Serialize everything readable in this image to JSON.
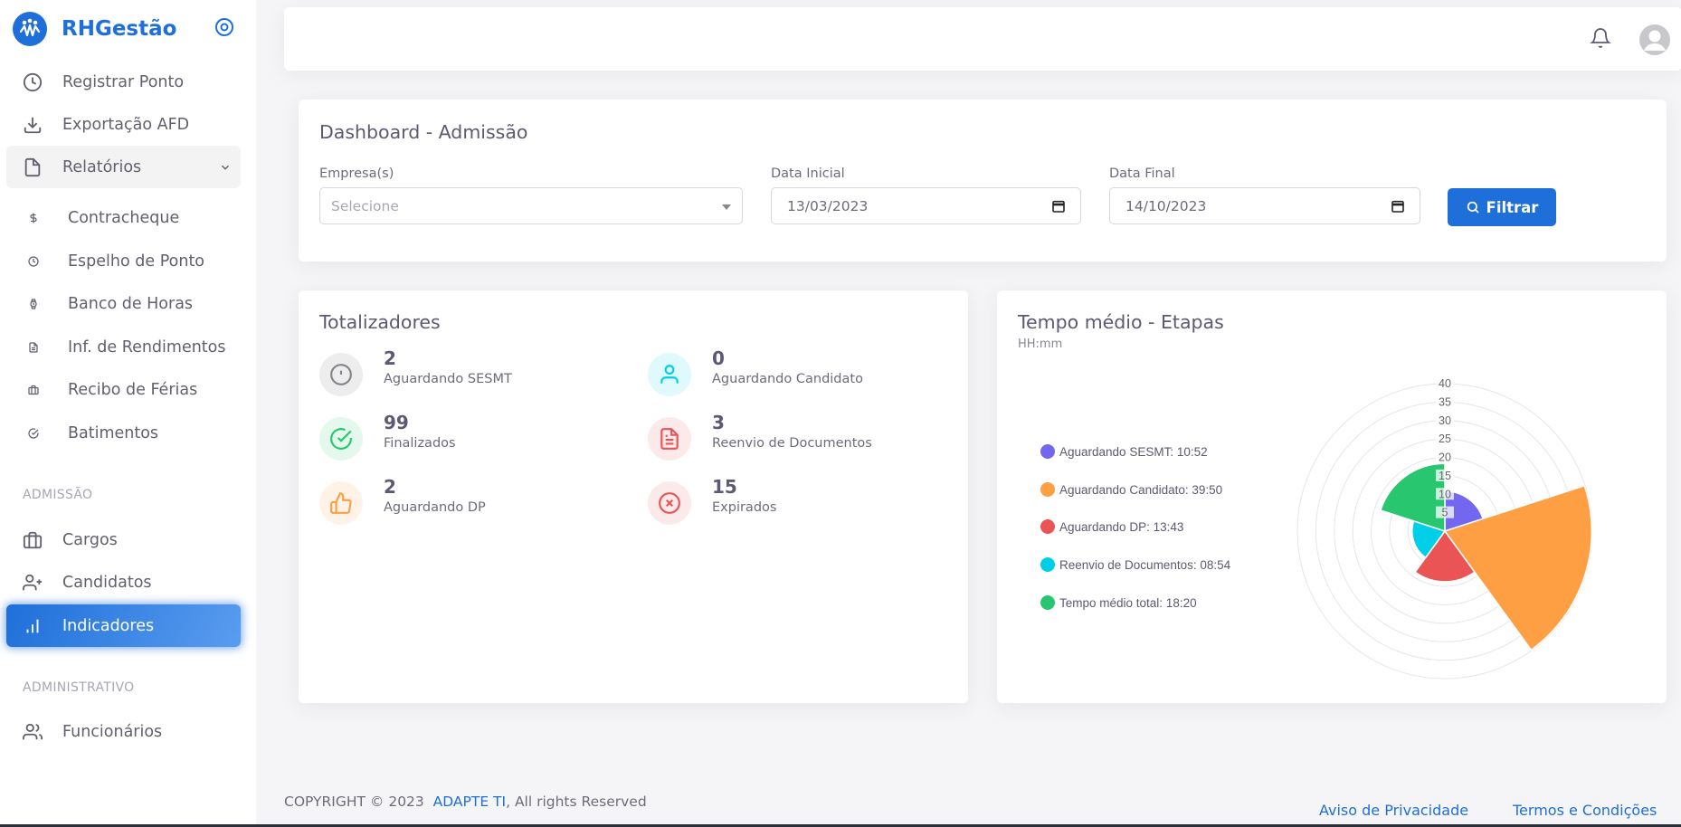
{
  "brand": {
    "name": "RHGestão"
  },
  "sidebar": {
    "items": [
      {
        "label": "Registrar Ponto",
        "icon": "clock-icon"
      },
      {
        "label": "Exportação AFD",
        "icon": "download-icon"
      },
      {
        "label": "Relatórios",
        "icon": "file-icon"
      }
    ],
    "reports": [
      {
        "label": "Contracheque",
        "icon": "dollar-icon"
      },
      {
        "label": "Espelho de Ponto",
        "icon": "clock-icon"
      },
      {
        "label": "Banco de Horas",
        "icon": "watch-icon"
      },
      {
        "label": "Inf. de Rendimentos",
        "icon": "file-text-icon"
      },
      {
        "label": "Recibo de Férias",
        "icon": "briefcase-icon"
      },
      {
        "label": "Batimentos",
        "icon": "check-circle-icon"
      }
    ],
    "section_admissao": "ADMISSÃO",
    "admissao": [
      {
        "label": "Cargos",
        "icon": "briefcase-icon"
      },
      {
        "label": "Candidatos",
        "icon": "user-plus-icon"
      },
      {
        "label": "Indicadores",
        "icon": "bar-chart-icon",
        "active": true
      }
    ],
    "section_admin": "ADMINISTRATIVO",
    "admin": [
      {
        "label": "Funcionários",
        "icon": "users-icon"
      }
    ]
  },
  "filter": {
    "title": "Dashboard - Admissão",
    "empresa_label": "Empresa(s)",
    "empresa_placeholder": "Selecione",
    "data_inicial_label": "Data Inicial",
    "data_inicial_value": "13/03/2023",
    "data_final_label": "Data Final",
    "data_final_value": "14/10/2023",
    "button_label": "Filtrar"
  },
  "totalizadores": {
    "title": "Totalizadores",
    "stats": [
      {
        "value": "2",
        "label": "Aguardando SESMT",
        "icon": "alert-circle-icon",
        "color": "#82868b"
      },
      {
        "value": "0",
        "label": "Aguardando Candidato",
        "icon": "user-icon",
        "color": "#00cfe8"
      },
      {
        "value": "99",
        "label": "Finalizados",
        "icon": "check-circle-icon",
        "color": "#28c76f"
      },
      {
        "value": "3",
        "label": "Reenvio de Documentos",
        "icon": "file-text-icon",
        "color": "#ea5455"
      },
      {
        "value": "2",
        "label": "Aguardando DP",
        "icon": "thumbs-up-icon",
        "color": "#ff9f43"
      },
      {
        "value": "15",
        "label": "Expirados",
        "icon": "x-circle-icon",
        "color": "#ea5455"
      }
    ]
  },
  "tempo_medio": {
    "title": "Tempo médio - Etapas",
    "subtitle": "HH:mm"
  },
  "chart_data": {
    "type": "polarArea",
    "title": "Tempo médio - Etapas",
    "legend_position": "left",
    "series": [
      {
        "name": "Aguardando SESMT: 10:52",
        "value": 10.87,
        "color": "#7367f0"
      },
      {
        "name": "Aguardando Candidato: 39:50",
        "value": 39.83,
        "color": "#ff9f43"
      },
      {
        "name": "Aguardando DP: 13:43",
        "value": 13.72,
        "color": "#ea5455"
      },
      {
        "name": "Reenvio de Documentos: 08:54",
        "value": 8.9,
        "color": "#00cfe8"
      },
      {
        "name": "Tempo médio total: 18:20",
        "value": 18.33,
        "color": "#28c76f"
      }
    ],
    "r_ticks": [
      "40",
      "35",
      "30",
      "25",
      "20",
      "15",
      "10",
      "5"
    ],
    "rlim": [
      0,
      40
    ]
  },
  "footer": {
    "copyright_prefix": "COPYRIGHT © 2023",
    "company": "ADAPTE TI",
    "copyright_suffix": ", All rights Reserved",
    "privacy": "Aviso de Privacidade",
    "terms": "Termos e Condições"
  }
}
